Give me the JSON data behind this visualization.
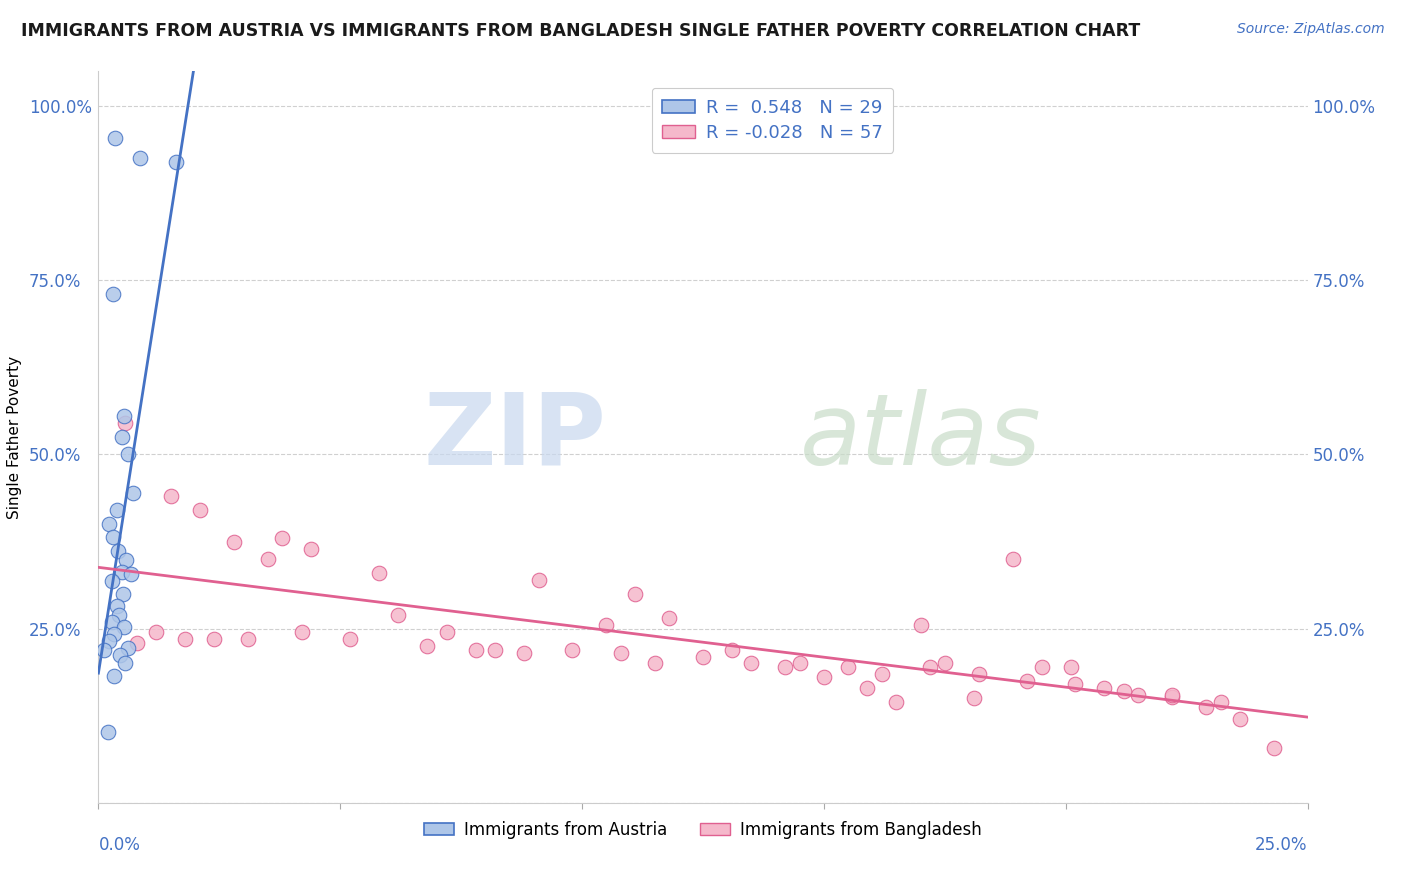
{
  "title": "IMMIGRANTS FROM AUSTRIA VS IMMIGRANTS FROM BANGLADESH SINGLE FATHER POVERTY CORRELATION CHART",
  "source": "Source: ZipAtlas.com",
  "ylabel": "Single Father Poverty",
  "legend_label_austria": "Immigrants from Austria",
  "legend_label_bangladesh": "Immigrants from Bangladesh",
  "R_austria": 0.548,
  "N_austria": 29,
  "R_bangladesh": -0.028,
  "N_bangladesh": 57,
  "color_austria": "#aec6e8",
  "color_bangladesh": "#f5b8cb",
  "color_line_austria": "#4472c4",
  "color_line_bangladesh": "#e06090",
  "color_source": "#4472c4",
  "color_ytick": "#4472c4",
  "austria_x": [
    0.0035,
    0.0085,
    0.016,
    0.003,
    0.0052,
    0.0048,
    0.0062,
    0.0071,
    0.0038,
    0.0022,
    0.0031,
    0.0041,
    0.0058,
    0.0049,
    0.0068,
    0.0029,
    0.0051,
    0.0039,
    0.0042,
    0.0028,
    0.0053,
    0.0032,
    0.0021,
    0.0012,
    0.0061,
    0.0044,
    0.0055,
    0.0033,
    0.0019
  ],
  "austria_y": [
    0.955,
    0.925,
    0.92,
    0.73,
    0.555,
    0.525,
    0.5,
    0.445,
    0.42,
    0.4,
    0.382,
    0.362,
    0.348,
    0.332,
    0.328,
    0.318,
    0.3,
    0.282,
    0.27,
    0.26,
    0.252,
    0.242,
    0.232,
    0.22,
    0.222,
    0.212,
    0.2,
    0.182,
    0.102
  ],
  "bangladesh_x": [
    0.0055,
    0.015,
    0.021,
    0.028,
    0.035,
    0.038,
    0.044,
    0.058,
    0.062,
    0.072,
    0.082,
    0.091,
    0.105,
    0.111,
    0.118,
    0.131,
    0.142,
    0.15,
    0.159,
    0.165,
    0.17,
    0.175,
    0.181,
    0.189,
    0.195,
    0.201,
    0.208,
    0.215,
    0.222,
    0.229,
    0.236,
    0.243,
    0.008,
    0.012,
    0.018,
    0.024,
    0.031,
    0.042,
    0.052,
    0.068,
    0.078,
    0.088,
    0.098,
    0.108,
    0.115,
    0.125,
    0.135,
    0.145,
    0.155,
    0.162,
    0.172,
    0.182,
    0.192,
    0.202,
    0.212,
    0.222,
    0.232
  ],
  "bangladesh_y": [
    0.545,
    0.44,
    0.42,
    0.375,
    0.35,
    0.38,
    0.365,
    0.33,
    0.27,
    0.245,
    0.22,
    0.32,
    0.255,
    0.3,
    0.265,
    0.22,
    0.195,
    0.18,
    0.165,
    0.145,
    0.255,
    0.2,
    0.15,
    0.35,
    0.195,
    0.195,
    0.165,
    0.155,
    0.152,
    0.138,
    0.12,
    0.078,
    0.23,
    0.245,
    0.235,
    0.235,
    0.235,
    0.245,
    0.235,
    0.225,
    0.22,
    0.215,
    0.22,
    0.215,
    0.2,
    0.21,
    0.2,
    0.2,
    0.195,
    0.185,
    0.195,
    0.185,
    0.175,
    0.17,
    0.16,
    0.155,
    0.145
  ],
  "xmin": 0.0,
  "xmax": 0.25,
  "ymin": 0.0,
  "ymax": 1.05,
  "yticks": [
    0.0,
    0.25,
    0.5,
    0.75,
    1.0
  ],
  "ytick_labels": [
    "",
    "25.0%",
    "50.0%",
    "75.0%",
    "100.0%"
  ]
}
